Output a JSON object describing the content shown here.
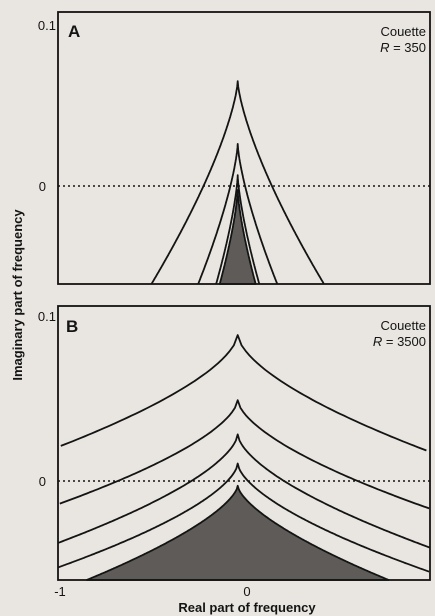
{
  "chart_data": [
    {
      "type": "line",
      "panel_label": "A",
      "annotation_line1": "Couette",
      "annotation_line2_prefix": "R",
      "annotation_line2_suffix": " = 350",
      "xlim": [
        -1,
        1.07
      ],
      "ylim": [
        -0.06,
        0.105
      ],
      "ytick_labels": [
        {
          "value": 0.1,
          "label": "0.1"
        },
        {
          "value": 0,
          "label": "0"
        }
      ],
      "reference_line_y": 0,
      "series": [
        {
          "peak": 0.063,
          "peak_width": 0.06,
          "foot_left": -0.48,
          "foot_right": 0.48,
          "shape": 1.4
        },
        {
          "peak": 0.025,
          "peak_width": 0.04,
          "foot_left": -0.22,
          "foot_right": 0.22,
          "shape": 1.4
        },
        {
          "peak": 0.006,
          "peak_width": 0.03,
          "foot_left": -0.12,
          "foot_right": 0.12,
          "shape": 1.4
        },
        {
          "peak": -0.003,
          "peak_width": 0.02,
          "foot_left": -0.1,
          "foot_right": 0.1,
          "shape": 1.4,
          "filled": true
        }
      ]
    },
    {
      "type": "line",
      "panel_label": "B",
      "annotation_line1": "Couette",
      "annotation_line2_prefix": "R",
      "annotation_line2_suffix": " = 3500",
      "xlim": [
        -1,
        1.07
      ],
      "ylim": [
        -0.055,
        0.105
      ],
      "ytick_labels": [
        {
          "value": 0.1,
          "label": "0.1"
        },
        {
          "value": 0,
          "label": "0"
        }
      ],
      "xtick_labels": [
        {
          "value": -1,
          "label": "-1"
        },
        {
          "value": 0,
          "label": "0"
        }
      ],
      "reference_line_y": 0,
      "series": [
        {
          "peak": 0.088,
          "peak_width": 0.05,
          "foot_left": -3.5,
          "foot_right": 3.5,
          "shape": 1.6
        },
        {
          "peak": 0.05,
          "peak_width": 0.045,
          "foot_left": -2.4,
          "foot_right": 2.4,
          "shape": 1.6
        },
        {
          "peak": 0.03,
          "peak_width": 0.035,
          "foot_left": -1.6,
          "foot_right": 1.6,
          "shape": 1.6
        },
        {
          "peak": 0.013,
          "peak_width": 0.03,
          "foot_left": -1.2,
          "foot_right": 1.2,
          "shape": 1.6
        },
        {
          "peak": 0.0,
          "peak_width": 0.02,
          "foot_left": -0.84,
          "foot_right": 0.84,
          "shape": 1.5,
          "filled": true
        }
      ]
    }
  ],
  "axes": {
    "xlabel": "Real part of frequency",
    "ylabel": "Imaginary part of frequency"
  },
  "colors": {
    "background": "#e9e6e1",
    "ink": "#141414",
    "fill": "#5e5b59"
  }
}
